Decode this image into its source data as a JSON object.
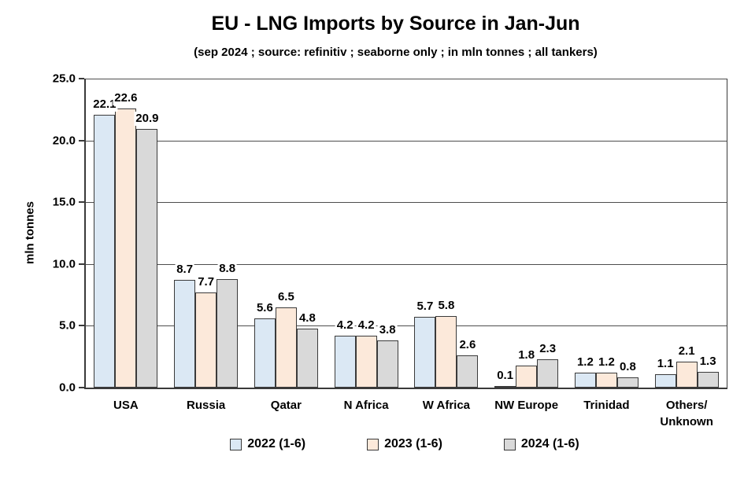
{
  "chart": {
    "title": "EU - LNG Imports by Source in Jan-Jun",
    "subtitle": "(sep 2024 ; source: refinitiv ; seaborne only ; in mln tonnes ; all tankers)",
    "ylabel": "mln tonnes"
  },
  "chart_data": {
    "type": "bar",
    "title": "EU - LNG Imports by Source in Jan-Jun",
    "subtitle": "(sep 2024 ; source: refinitiv ; seaborne only ; in mln tonnes ; all tankers)",
    "xlabel": "",
    "ylabel": "mln tonnes",
    "categories": [
      "USA",
      "Russia",
      "Qatar",
      "N Africa",
      "W Africa",
      "NW Europe",
      "Trinidad",
      "Others/\nUnknown"
    ],
    "series": [
      {
        "name": "2022 (1-6)",
        "color": "#dbe8f4",
        "values": [
          22.1,
          8.7,
          5.6,
          4.2,
          5.7,
          0.1,
          1.2,
          1.1
        ]
      },
      {
        "name": "2023 (1-6)",
        "color": "#fce9da",
        "values": [
          22.6,
          7.7,
          6.5,
          4.2,
          5.8,
          1.8,
          1.2,
          2.1
        ]
      },
      {
        "name": "2024 (1-6)",
        "color": "#d9d9d9",
        "values": [
          20.9,
          8.8,
          4.8,
          3.8,
          2.6,
          2.3,
          0.8,
          1.3
        ]
      }
    ],
    "ylim": [
      0,
      25
    ],
    "ytick_step": 5,
    "ytick_labels": [
      "0.0",
      "5.0",
      "10.0",
      "15.0",
      "20.0",
      "25.0"
    ],
    "grid": true,
    "legend_position": "bottom",
    "value_labels": true,
    "colors": {
      "bar_border": "#3a3a3a",
      "gridline": "#4d4d4d",
      "axis": "#3a3a3a",
      "text": "#000000",
      "background": "#ffffff"
    }
  }
}
